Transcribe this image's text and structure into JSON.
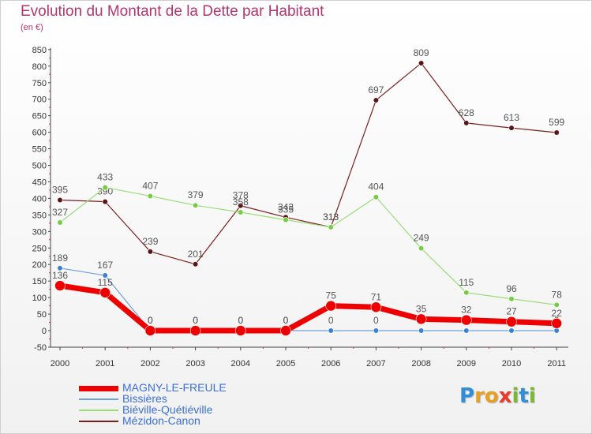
{
  "title": "Evolution du Montant de la Dette par Habitant",
  "subtitle": "(en €)",
  "logo": {
    "text": "Proxiti",
    "letters": [
      {
        "ch": "P",
        "color": "#2f8fd8"
      },
      {
        "ch": "r",
        "color": "#e8a020"
      },
      {
        "ch": "o",
        "color": "#e8a020"
      },
      {
        "ch": "x",
        "color": "#e83a2a"
      },
      {
        "ch": "i",
        "color": "#7cb82f"
      },
      {
        "ch": "t",
        "color": "#2f8fd8"
      },
      {
        "ch": "i",
        "color": "#7cb82f"
      }
    ]
  },
  "chart_data": {
    "type": "line",
    "title": "Evolution du Montant de la Dette par Habitant",
    "ylabel": "(en €)",
    "xlabel": "",
    "ylim": [
      -50,
      850
    ],
    "yticks": [
      -50,
      0,
      50,
      100,
      150,
      200,
      250,
      300,
      350,
      400,
      450,
      500,
      550,
      600,
      650,
      700,
      750,
      800,
      850
    ],
    "categories": [
      "2000",
      "2001",
      "2002",
      "2003",
      "2004",
      "2005",
      "2006",
      "2007",
      "2008",
      "2009",
      "2010",
      "2011"
    ],
    "grid": false,
    "legend_position": "bottom-left",
    "series": [
      {
        "name": "Mézidon-Canon",
        "color": "#7a1f1f",
        "point_color": "#5a1414",
        "width": 1.2,
        "marker_r": 3.3,
        "values": [
          395,
          390,
          239,
          201,
          378,
          343,
          313,
          697,
          809,
          628,
          613,
          599
        ]
      },
      {
        "name": "Biéville-Quétiéville",
        "color": "#99dd77",
        "point_color": "#77cc44",
        "width": 1.2,
        "marker_r": 3.3,
        "values": [
          327,
          433,
          407,
          379,
          358,
          335,
          313,
          404,
          249,
          115,
          96,
          78
        ]
      },
      {
        "name": "Bissières",
        "color": "#6fa0d8",
        "point_color": "#3a82d0",
        "width": 1.2,
        "marker_r": 3.3,
        "values": [
          189,
          167,
          0,
          0,
          0,
          0,
          0,
          0,
          0,
          0,
          0,
          0
        ]
      },
      {
        "name": "MAGNY-LE-FREULE",
        "color": "#ee0000",
        "point_color": "#ee0000",
        "width": 7,
        "marker_r": 6.5,
        "values": [
          136,
          115,
          0,
          0,
          0,
          0,
          75,
          71,
          35,
          32,
          27,
          22
        ]
      }
    ],
    "legend_order": [
      "MAGNY-LE-FREULE",
      "Bissières",
      "Biéville-Quétiéville",
      "Mézidon-Canon"
    ]
  }
}
